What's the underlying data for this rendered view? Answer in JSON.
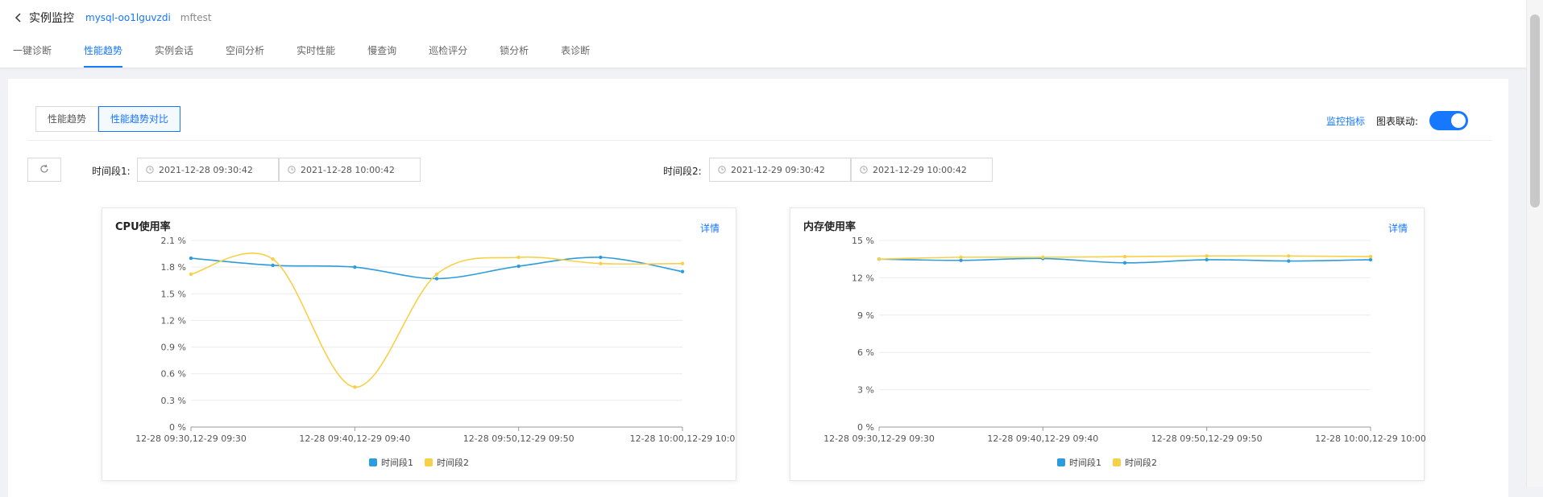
{
  "header": {
    "title": "实例监控",
    "instance_id": "mysql-oo1lguvzdi",
    "instance_name": "mftest"
  },
  "tabs": [
    {
      "label": "一键诊断",
      "active": false
    },
    {
      "label": "性能趋势",
      "active": true
    },
    {
      "label": "实例会话",
      "active": false
    },
    {
      "label": "空间分析",
      "active": false
    },
    {
      "label": "实时性能",
      "active": false
    },
    {
      "label": "慢查询",
      "active": false
    },
    {
      "label": "巡检评分",
      "active": false
    },
    {
      "label": "锁分析",
      "active": false
    },
    {
      "label": "表诊断",
      "active": false
    }
  ],
  "segmented": {
    "trend_label": "性能趋势",
    "compare_label": "性能趋势对比"
  },
  "controls": {
    "metrics_link": "监控指标",
    "chart_link_label": "图表联动:"
  },
  "range1": {
    "label": "时间段1:",
    "start": "2021-12-28 09:30:42",
    "end": "2021-12-28 10:00:42"
  },
  "range2": {
    "label": "时间段2:",
    "start": "2021-12-29 09:30:42",
    "end": "2021-12-29 10:00:42"
  },
  "colors": {
    "series1": "#2d9cdb",
    "series2": "#f7d04a",
    "accent": "#1677ff"
  },
  "chart_data": [
    {
      "type": "line",
      "title": "CPU使用率",
      "detail_label": "详情",
      "yticks": [
        "0 %",
        "0.3 %",
        "0.6 %",
        "0.9 %",
        "1.2 %",
        "1.5 %",
        "1.8 %",
        "2.1 %"
      ],
      "ylim": [
        0,
        2.1
      ],
      "xticks": [
        "12-28 09:30,12-29 09:30",
        "12-28 09:40,12-29 09:40",
        "12-28 09:50,12-29 09:50",
        "12-28 10:00,12-29 10:0"
      ],
      "xlim": [
        0,
        30
      ],
      "series": [
        {
          "name": "时间段1",
          "x": [
            0,
            5,
            10,
            15,
            20,
            25,
            30
          ],
          "values": [
            1.9,
            1.82,
            1.8,
            1.67,
            1.81,
            1.91,
            1.75
          ]
        },
        {
          "name": "时间段2",
          "x": [
            0,
            5,
            10,
            15,
            20,
            25,
            30
          ],
          "values": [
            1.72,
            1.89,
            0.45,
            1.72,
            1.91,
            1.84,
            1.84
          ]
        }
      ]
    },
    {
      "type": "line",
      "title": "内存使用率",
      "detail_label": "详情",
      "yticks": [
        "0 %",
        "3 %",
        "6 %",
        "9 %",
        "12 %",
        "15 %"
      ],
      "ylim": [
        0,
        15
      ],
      "xticks": [
        "12-28 09:30,12-29 09:30",
        "12-28 09:40,12-29 09:40",
        "12-28 09:50,12-29 09:50",
        "12-28 10:00,12-29 10:00"
      ],
      "xlim": [
        0,
        30
      ],
      "series": [
        {
          "name": "时间段1",
          "x": [
            0,
            5,
            10,
            15,
            20,
            25,
            30
          ],
          "values": [
            13.5,
            13.4,
            13.55,
            13.2,
            13.45,
            13.35,
            13.45
          ]
        },
        {
          "name": "时间段2",
          "x": [
            0,
            5,
            10,
            15,
            20,
            25,
            30
          ],
          "values": [
            13.5,
            13.65,
            13.65,
            13.7,
            13.75,
            13.75,
            13.7
          ]
        }
      ]
    }
  ]
}
